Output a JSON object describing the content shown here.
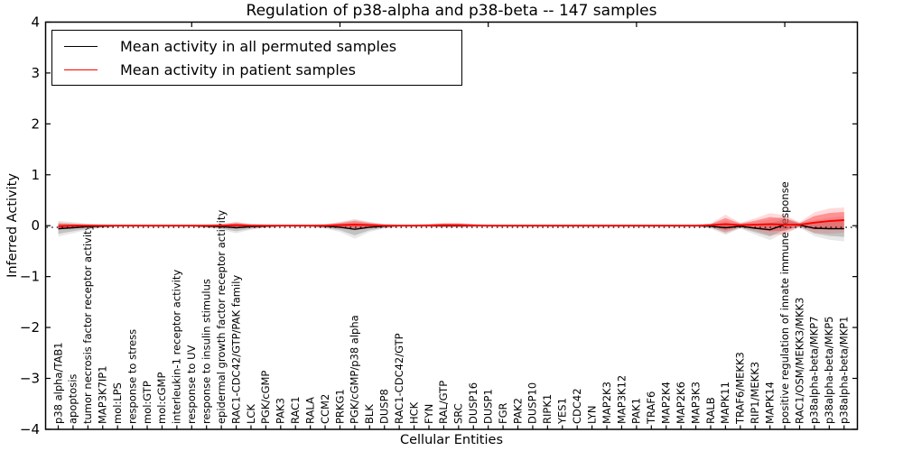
{
  "title": "Regulation of p38-alpha and p38-beta -- 147 samples",
  "axes": {
    "ylabel": "Inferred Activity",
    "xlabel": "Cellular Entities"
  },
  "legend": {
    "items": [
      {
        "label": "Mean activity in all permuted samples",
        "color": "#000000"
      },
      {
        "label": "Mean activity in patient samples",
        "color": "#ff0000"
      }
    ]
  },
  "chart_data": {
    "type": "line",
    "title": "Regulation of p38-alpha and p38-beta -- 147 samples",
    "xlabel": "Cellular Entities",
    "ylabel": "Inferred Activity",
    "ylim": [
      -4,
      4
    ],
    "yticks": [
      4,
      3,
      2,
      1,
      0,
      -1,
      -2,
      -3,
      -4
    ],
    "top_tick_indices": [
      9,
      19,
      29,
      39,
      49
    ],
    "grid": false,
    "legend_position": "upper left",
    "zero_line": {
      "style": "dotted",
      "color": "#000000",
      "y": 0
    },
    "categories": [
      "p38 alpha/TAB1",
      "apoptosis",
      "tumor necrosis factor receptor activity",
      "MAP3K7IP1",
      "mol:LPS",
      "response to stress",
      "mol:GTP",
      "mol:cGMP",
      "interleukin-1 receptor activity",
      "response to UV",
      "response to insulin stimulus",
      "epidermal growth factor receptor activity",
      "RAC1-CDC42/GTP/PAK family",
      "LCK",
      "PGK/cGMP",
      "PAK3",
      "RAC1",
      "RALA",
      "CCM2",
      "PRKG1",
      "PGK/cGMP/p38 alpha",
      "BLK",
      "DUSP8",
      "RAC1-CDC42/GTP",
      "HCK",
      "FYN",
      "RAL/GTP",
      "SRC",
      "DUSP16",
      "DUSP1",
      "FGR",
      "PAK2",
      "DUSP10",
      "RIPK1",
      "YES1",
      "CDC42",
      "LYN",
      "MAP2K3",
      "MAP3K12",
      "PAK1",
      "TRAF6",
      "MAP2K4",
      "MAP2K6",
      "MAP3K3",
      "RALB",
      "MAPK11",
      "TRAF6/MEKK3",
      "RIP1/MEKK3",
      "MAPK14",
      "positive regulation of innate immune response",
      "RAC1/OSM/MEKK3/MKK3",
      "p38alpha-beta/MKP7",
      "p38alpha-beta/MKP5",
      "p38alpha-beta/MKP1"
    ],
    "series": [
      {
        "name": "Mean activity in all permuted samples",
        "color": "#000000",
        "band_color": "#8c8c8c",
        "values": [
          -0.06,
          -0.04,
          -0.02,
          -0.01,
          0,
          0,
          0,
          0,
          0,
          0,
          -0.01,
          -0.02,
          -0.04,
          -0.02,
          -0.01,
          0,
          0,
          0,
          -0.01,
          -0.03,
          -0.07,
          -0.03,
          -0.01,
          0,
          0,
          0,
          0,
          0,
          0,
          0,
          0,
          0,
          0,
          0,
          0,
          0,
          0,
          0,
          0,
          0,
          0,
          0,
          0,
          0,
          -0.01,
          -0.04,
          -0.01,
          -0.05,
          -0.08,
          0.02,
          0.01,
          -0.05,
          -0.06,
          -0.06
        ],
        "band_halfwidth": [
          0.1,
          0.07,
          0.04,
          0.02,
          0.015,
          0.015,
          0.015,
          0.015,
          0.015,
          0.015,
          0.02,
          0.04,
          0.07,
          0.04,
          0.02,
          0.015,
          0.015,
          0.015,
          0.03,
          0.06,
          0.12,
          0.06,
          0.03,
          0.015,
          0.015,
          0.015,
          0.02,
          0.02,
          0.015,
          0.015,
          0.015,
          0.015,
          0.015,
          0.015,
          0.015,
          0.015,
          0.015,
          0.015,
          0.015,
          0.015,
          0.015,
          0.015,
          0.015,
          0.015,
          0.03,
          0.09,
          0.03,
          0.08,
          0.13,
          0.1,
          0.03,
          0.1,
          0.14,
          0.16
        ]
      },
      {
        "name": "Mean activity in patient samples",
        "color": "#ff0000",
        "band_color": "#ff3030",
        "values": [
          -0.01,
          0,
          0,
          0,
          0,
          0,
          0,
          0,
          0,
          0,
          0,
          0,
          0.01,
          0,
          0,
          0,
          0,
          0,
          0,
          0.01,
          0.02,
          0.01,
          0,
          0,
          0,
          0.005,
          0.01,
          0.01,
          0.005,
          0,
          0,
          0,
          0,
          0,
          0,
          0,
          0,
          0,
          0,
          0,
          0,
          0,
          0,
          0,
          0.01,
          0.03,
          0.01,
          0.02,
          0.03,
          0.02,
          0.02,
          0.06,
          0.09,
          0.11
        ],
        "band_halfwidth": [
          0.05,
          0.03,
          0.02,
          0.015,
          0.01,
          0.01,
          0.01,
          0.01,
          0.01,
          0.01,
          0.015,
          0.02,
          0.04,
          0.02,
          0.015,
          0.01,
          0.01,
          0.01,
          0.02,
          0.04,
          0.07,
          0.04,
          0.02,
          0.01,
          0.01,
          0.02,
          0.03,
          0.03,
          0.02,
          0.01,
          0.01,
          0.01,
          0.01,
          0.01,
          0.01,
          0.01,
          0.01,
          0.01,
          0.01,
          0.01,
          0.01,
          0.01,
          0.01,
          0.01,
          0.02,
          0.12,
          0.03,
          0.08,
          0.14,
          0.12,
          0.03,
          0.13,
          0.16,
          0.16
        ]
      }
    ]
  }
}
